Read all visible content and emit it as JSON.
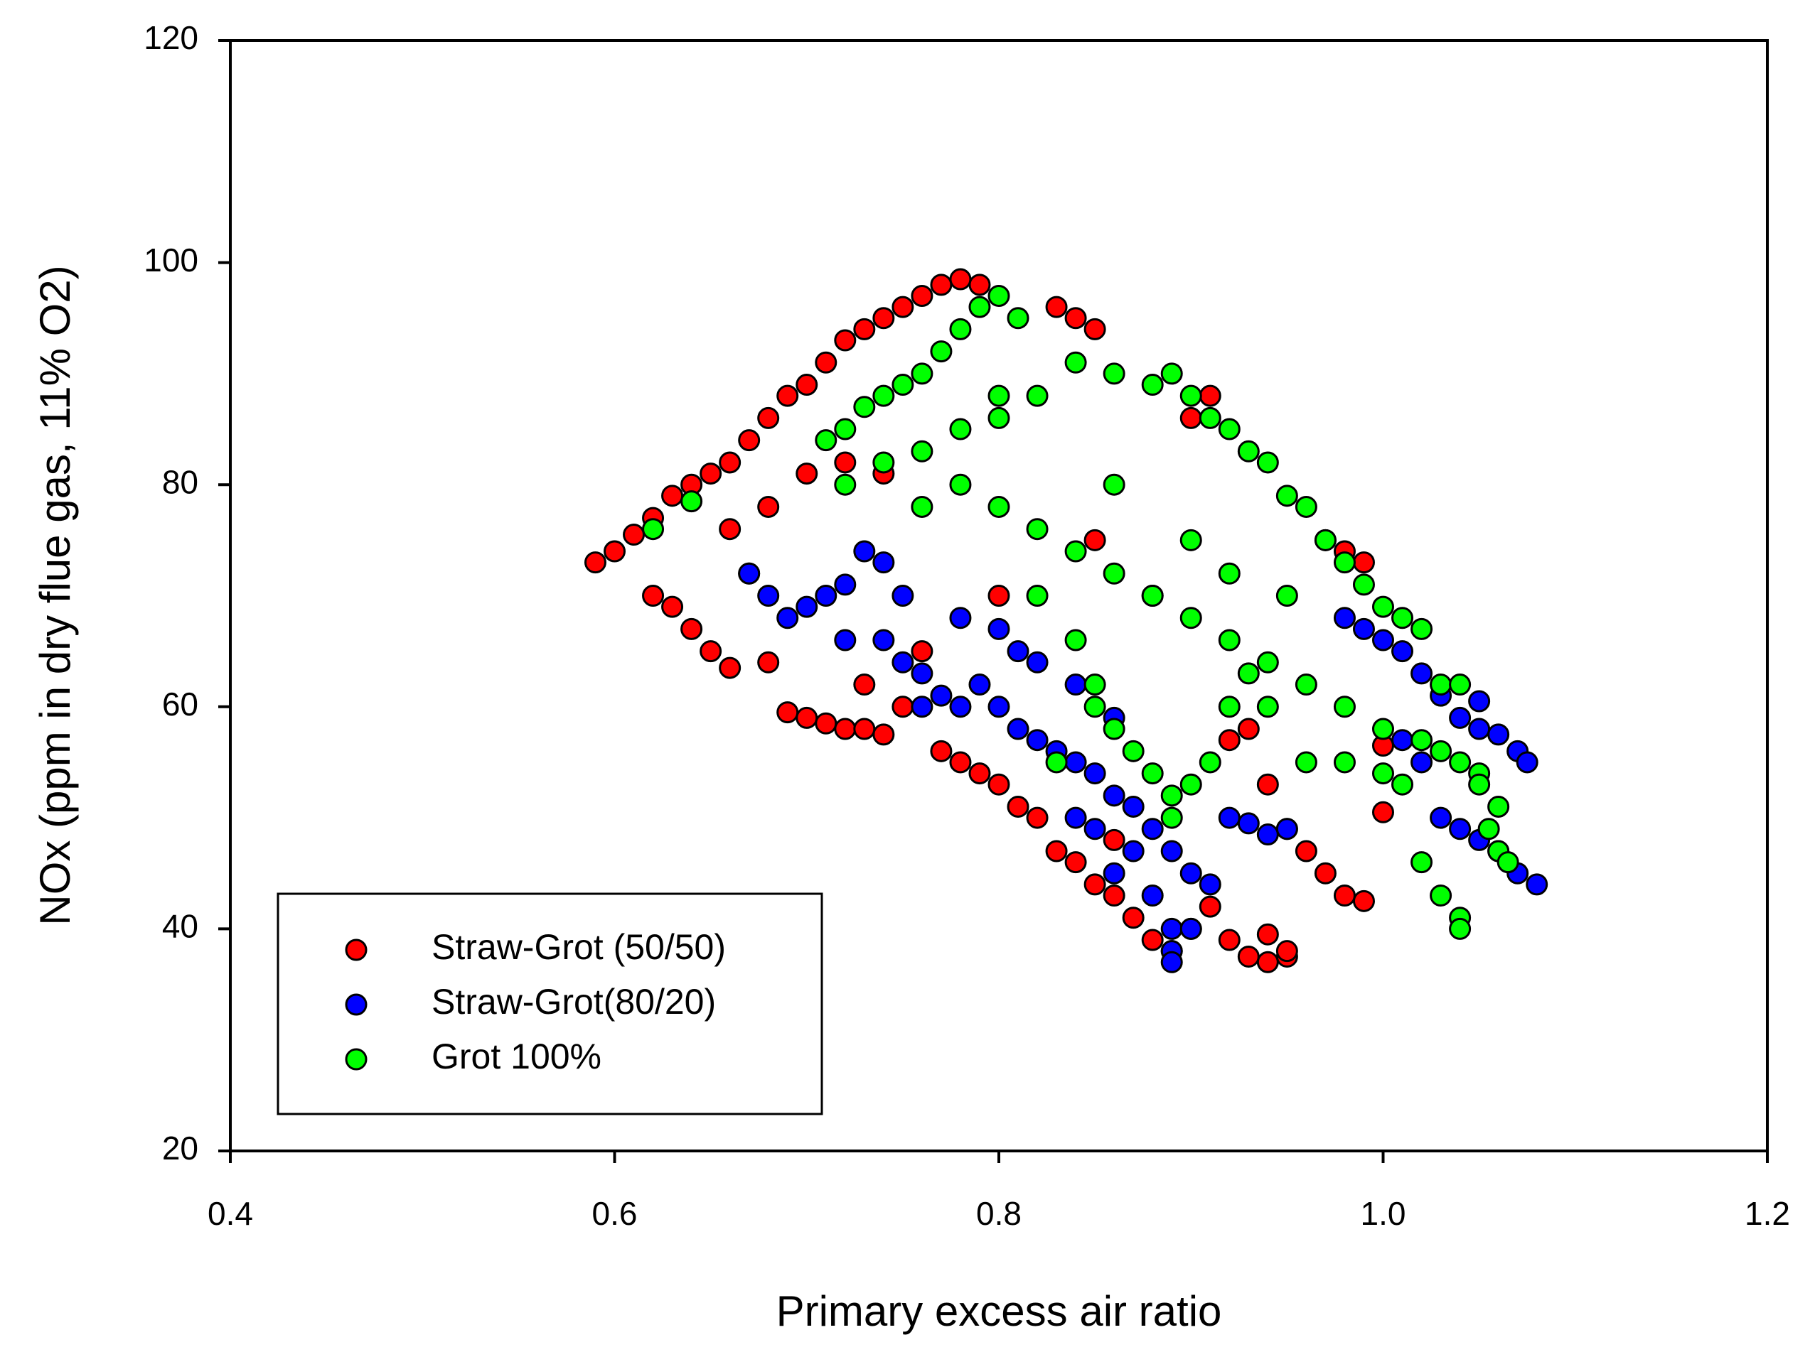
{
  "chart_data": {
    "type": "scatter",
    "x_label": "Primary excess air ratio",
    "y_label": "NOx (ppm in dry flue gas, 11% O2)",
    "xlim": [
      0.4,
      1.2
    ],
    "xticks": [
      0.4,
      0.6,
      0.8,
      {
        "value": 1,
        "label": "1.0"
      },
      1.2
    ],
    "ylim": [
      20,
      120
    ],
    "yticks": [
      20,
      40,
      60,
      80,
      100,
      120
    ],
    "legend": "lower-left",
    "series": [
      {
        "name": "Straw-Grot (50/50)",
        "color": "#ff0000",
        "x": [
          0.59,
          0.6,
          0.61,
          0.62,
          0.63,
          0.64,
          0.65,
          0.66,
          0.67,
          0.68,
          0.69,
          0.7,
          0.71,
          0.72,
          0.73,
          0.74,
          0.75,
          0.76,
          0.77,
          0.78,
          0.79,
          0.62,
          0.63,
          0.64,
          0.65,
          0.66,
          0.67,
          0.68,
          0.69,
          0.7,
          0.71,
          0.72,
          0.73,
          0.74,
          0.66,
          0.68,
          0.7,
          0.72,
          0.74,
          0.73,
          0.75,
          0.77,
          0.78,
          0.79,
          0.8,
          0.81,
          0.82,
          0.83,
          0.84,
          0.85,
          0.83,
          0.84,
          0.85,
          0.86,
          0.87,
          0.88,
          0.89,
          0.9,
          0.91,
          0.92,
          0.93,
          0.94,
          0.95,
          0.94,
          0.95,
          0.93,
          0.94,
          0.95,
          0.96,
          0.97,
          0.98,
          0.99,
          0.97,
          0.98,
          0.99,
          1.0,
          1.0,
          0.9,
          0.91,
          0.88,
          0.85,
          0.8,
          0.76,
          0.86,
          0.92
        ],
        "y": [
          73,
          74,
          75.5,
          77,
          79,
          80,
          81,
          82,
          84,
          86,
          88,
          89,
          91,
          93,
          94,
          95,
          96,
          97,
          98,
          98.5,
          98,
          70,
          69,
          67,
          65,
          63.5,
          72,
          64,
          59.5,
          59,
          58.5,
          58,
          58,
          57.5,
          76,
          78,
          81,
          82,
          81,
          62,
          60,
          56,
          55,
          54,
          53,
          51,
          50,
          96,
          95,
          94,
          47,
          46,
          44,
          43,
          41,
          39,
          38,
          40,
          42,
          39,
          37.5,
          37,
          37.5,
          39.5,
          38,
          58,
          53,
          49,
          47,
          45,
          43,
          42.5,
          75,
          74,
          73,
          50.5,
          56.5,
          86,
          88,
          70,
          75,
          70,
          65,
          48,
          57
        ]
      },
      {
        "name": "Straw-Grot(80/20)",
        "color": "#0000ff",
        "x": [
          0.67,
          0.68,
          0.69,
          0.7,
          0.71,
          0.72,
          0.73,
          0.74,
          0.72,
          0.74,
          0.75,
          0.76,
          0.77,
          0.78,
          0.76,
          0.79,
          0.8,
          0.81,
          0.82,
          0.83,
          0.84,
          0.85,
          0.86,
          0.87,
          0.88,
          0.89,
          0.9,
          0.88,
          0.89,
          0.89,
          0.89,
          0.84,
          0.85,
          0.87,
          0.86,
          0.78,
          0.8,
          0.82,
          0.84,
          0.86,
          0.92,
          0.93,
          0.94,
          0.95,
          0.98,
          0.99,
          1.0,
          1.01,
          1.02,
          1.03,
          1.04,
          1.05,
          1.06,
          1.07,
          1.075,
          1.03,
          1.04,
          1.05,
          1.06,
          1.07,
          1.08,
          1.05,
          1.02,
          1.01,
          0.9,
          0.91,
          0.81,
          0.75
        ],
        "y": [
          72,
          70,
          68,
          69,
          70,
          71,
          74,
          73,
          66,
          66,
          64,
          63,
          61,
          60,
          60,
          62,
          60,
          58,
          57,
          56,
          55,
          54,
          52,
          51,
          49,
          47,
          45,
          43,
          40,
          38,
          37,
          50,
          49,
          47,
          45,
          68,
          67,
          64,
          62,
          59,
          50,
          49.5,
          48.5,
          49,
          68,
          67,
          66,
          65,
          63,
          61,
          59,
          58,
          57.5,
          56,
          55,
          50,
          49,
          48,
          47,
          45,
          44,
          60.5,
          55,
          57,
          40,
          44,
          65,
          70
        ]
      },
      {
        "name": "Grot 100%",
        "color": "#00ff00",
        "x": [
          0.62,
          0.64,
          0.71,
          0.72,
          0.73,
          0.74,
          0.75,
          0.76,
          0.77,
          0.78,
          0.79,
          0.8,
          0.81,
          0.72,
          0.74,
          0.76,
          0.78,
          0.8,
          0.82,
          0.84,
          0.86,
          0.88,
          0.89,
          0.9,
          0.91,
          0.92,
          0.93,
          0.94,
          0.95,
          0.96,
          0.97,
          0.98,
          0.99,
          1.0,
          1.01,
          1.02,
          0.8,
          0.82,
          0.84,
          0.86,
          0.88,
          0.9,
          0.92,
          0.94,
          0.96,
          0.98,
          1.0,
          1.02,
          1.03,
          1.04,
          1.05,
          0.82,
          0.84,
          0.85,
          0.86,
          0.87,
          0.88,
          0.89,
          0.89,
          0.9,
          0.91,
          0.92,
          0.93,
          0.94,
          0.96,
          0.98,
          1.0,
          1.01,
          1.02,
          1.03,
          1.04,
          1.04,
          1.03,
          1.04,
          1.05,
          1.06,
          1.055,
          1.06,
          1.065,
          0.83,
          0.85,
          0.8,
          0.78,
          0.76,
          0.86,
          0.9,
          0.92,
          0.95
        ],
        "y": [
          76,
          78.5,
          84,
          85,
          87,
          88,
          89,
          90,
          92,
          94,
          96,
          97,
          95,
          80,
          82,
          83,
          85,
          86,
          88,
          91,
          90,
          89,
          90,
          88,
          86,
          85,
          83,
          82,
          79,
          78,
          75,
          73,
          71,
          69,
          68,
          67,
          78,
          76,
          74,
          72,
          70,
          68,
          66,
          64,
          62,
          60,
          58,
          57,
          56,
          55,
          54,
          70,
          66,
          62,
          58,
          56,
          54,
          52,
          50,
          53,
          55,
          60,
          63,
          60,
          55,
          55,
          54,
          53,
          46,
          43,
          41,
          40,
          62,
          62,
          53,
          51,
          49,
          47,
          46,
          55,
          60,
          88,
          80,
          78,
          80,
          75,
          72,
          70
        ]
      }
    ]
  }
}
